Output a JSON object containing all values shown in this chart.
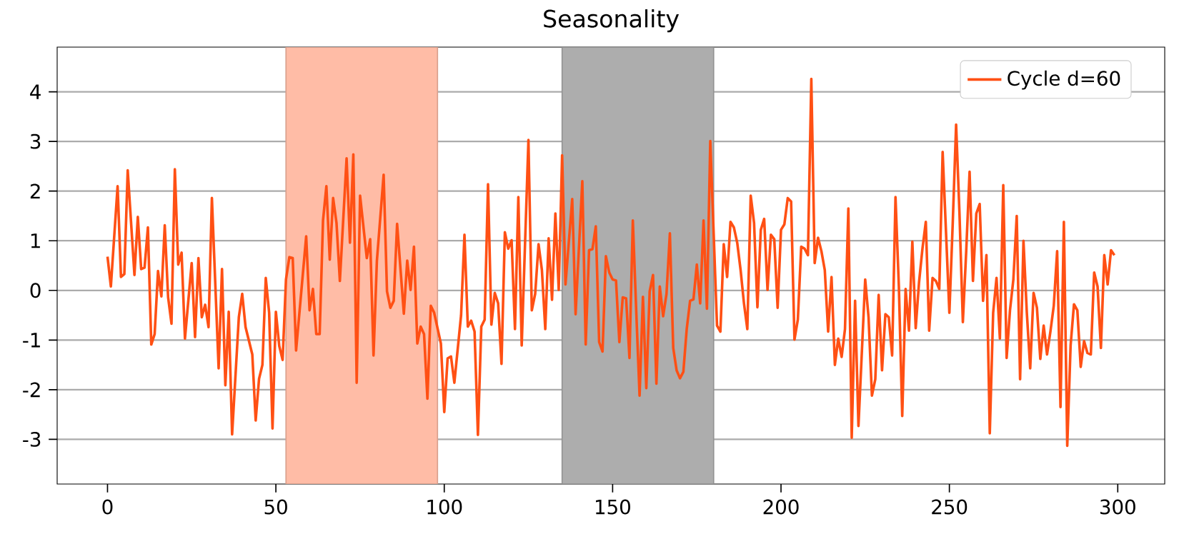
{
  "chart_data": {
    "type": "line",
    "title": "Seasonality",
    "x": [
      0,
      1,
      3,
      4,
      5,
      6,
      8,
      9,
      10,
      11,
      12,
      13,
      14,
      15,
      16,
      17,
      18,
      19,
      20,
      21,
      22,
      23,
      25,
      26,
      27,
      28,
      29,
      30,
      31,
      33,
      34,
      35,
      36,
      37,
      39,
      40,
      41,
      43,
      44,
      45,
      46,
      47,
      48,
      49,
      50,
      51,
      52,
      53,
      54,
      55,
      56,
      59,
      60,
      61,
      62,
      63,
      64,
      65,
      66,
      67,
      68,
      69,
      71,
      72,
      73,
      74,
      75,
      77,
      78,
      79,
      80,
      82,
      83,
      84,
      85,
      86,
      88,
      89,
      90,
      91,
      92,
      93,
      94,
      95,
      96,
      97,
      99,
      100,
      101,
      102,
      103,
      105,
      106,
      107,
      108,
      109,
      110,
      111,
      112,
      113,
      114,
      115,
      116,
      117,
      118,
      119,
      120,
      121,
      122,
      123,
      125,
      126,
      127,
      128,
      129,
      130,
      131,
      132,
      133,
      134,
      135,
      136,
      138,
      139,
      141,
      142,
      143,
      144,
      145,
      146,
      147,
      148,
      149,
      150,
      151,
      152,
      153,
      154,
      155,
      156,
      157,
      158,
      159,
      160,
      161,
      162,
      163,
      164,
      165,
      166,
      167,
      168,
      169,
      170,
      171,
      172,
      173,
      174,
      175,
      176,
      177,
      178,
      179,
      181,
      182,
      183,
      184,
      185,
      186,
      187,
      188,
      189,
      190,
      191,
      192,
      193,
      194,
      195,
      196,
      197,
      198,
      199,
      200,
      201,
      202,
      203,
      204,
      205,
      206,
      207,
      208,
      209,
      210,
      211,
      212,
      213,
      214,
      215,
      216,
      217,
      218,
      219,
      220,
      221,
      222,
      223,
      225,
      226,
      227,
      228,
      229,
      230,
      231,
      232,
      233,
      234,
      235,
      236,
      237,
      238,
      239,
      240,
      241,
      242,
      243,
      244,
      245,
      246,
      247,
      248,
      249,
      250,
      251,
      252,
      253,
      254,
      255,
      256,
      257,
      258,
      259,
      260,
      261,
      262,
      263,
      264,
      265,
      266,
      267,
      268,
      269,
      270,
      271,
      272,
      273,
      274,
      275,
      276,
      277,
      278,
      279,
      280,
      281,
      282,
      283,
      284,
      285,
      286,
      287,
      288,
      289,
      290,
      291,
      292,
      293,
      294,
      295,
      296,
      297,
      298,
      299
    ],
    "series": [
      {
        "name": "Cycle d=60",
        "color": "#ff5014",
        "values": [
          0.68,
          0.08,
          2.1,
          0.27,
          0.33,
          2.42,
          0.31,
          1.48,
          0.43,
          0.46,
          1.27,
          -1.09,
          -0.88,
          0.39,
          -0.12,
          1.31,
          -0.14,
          -0.67,
          2.44,
          0.52,
          0.76,
          -0.97,
          0.55,
          -0.94,
          0.65,
          -0.54,
          -0.29,
          -0.74,
          1.86,
          -1.57,
          0.43,
          -1.91,
          -0.43,
          -2.9,
          -0.54,
          -0.07,
          -0.74,
          -1.29,
          -2.62,
          -1.78,
          -1.5,
          0.25,
          -0.45,
          -2.78,
          -0.43,
          -1.12,
          -1.4,
          0.22,
          0.67,
          0.65,
          -1.21,
          1.09,
          -0.4,
          0.03,
          -0.88,
          -0.88,
          1.41,
          2.1,
          0.62,
          1.86,
          1.36,
          0.19,
          2.66,
          0.96,
          2.74,
          -1.86,
          1.91,
          0.65,
          1.03,
          -1.31,
          0.6,
          2.33,
          -0.02,
          -0.35,
          -0.21,
          1.34,
          -0.47,
          0.6,
          0.01,
          0.88,
          -1.07,
          -0.73,
          -0.88,
          -2.18,
          -0.31,
          -0.45,
          -1.07,
          -2.45,
          -1.37,
          -1.33,
          -1.86,
          -0.5,
          1.12,
          -0.73,
          -0.61,
          -0.83,
          -2.91,
          -0.73,
          -0.59,
          2.14,
          -0.69,
          -0.05,
          -0.26,
          -1.48,
          1.17,
          0.84,
          1.01,
          -0.78,
          1.88,
          -1.11,
          3.03,
          -0.4,
          -0.07,
          0.93,
          0.41,
          -0.78,
          1.05,
          -0.19,
          1.55,
          0.01,
          2.72,
          0.12,
          1.84,
          -0.48,
          2.2,
          -1.09,
          0.81,
          0.83,
          1.29,
          -1.04,
          -1.23,
          0.69,
          0.36,
          0.22,
          0.2,
          -1.04,
          -0.14,
          -0.16,
          -1.36,
          1.41,
          -0.4,
          -2.12,
          -0.13,
          -1.97,
          -0.02,
          0.31,
          -1.88,
          0.08,
          -0.52,
          -0.07,
          1.15,
          -1.16,
          -1.61,
          -1.77,
          -1.64,
          -0.78,
          -0.21,
          -0.18,
          0.52,
          -0.26,
          1.41,
          -0.37,
          3.01,
          -0.71,
          -0.83,
          0.93,
          0.27,
          1.38,
          1.27,
          0.96,
          0.41,
          -0.26,
          -0.78,
          1.91,
          1.36,
          -0.34,
          1.22,
          1.44,
          0.01,
          1.12,
          1.03,
          -0.35,
          1.22,
          1.33,
          1.86,
          1.79,
          -0.99,
          -0.59,
          0.88,
          0.84,
          0.71,
          4.26,
          0.55,
          1.06,
          0.79,
          0.41,
          -0.83,
          0.27,
          -1.5,
          -0.97,
          -1.34,
          -0.78,
          1.65,
          -2.97,
          -0.21,
          -2.73,
          0.22,
          -0.54,
          -2.12,
          -1.79,
          -0.09,
          -1.61,
          -0.48,
          -0.54,
          -1.31,
          1.88,
          0.08,
          -2.53,
          0.03,
          -0.81,
          0.98,
          -0.76,
          0.17,
          0.84,
          1.38,
          -0.81,
          0.25,
          0.19,
          0.03,
          2.79,
          1.17,
          -0.45,
          1.36,
          3.34,
          1.55,
          -0.64,
          0.79,
          2.39,
          0.19,
          1.55,
          1.74,
          -0.21,
          0.71,
          -2.88,
          -0.45,
          0.25,
          -0.97,
          2.12,
          -1.36,
          -0.4,
          0.22,
          1.5,
          -1.79,
          1.0,
          -0.45,
          -1.57,
          -0.05,
          -0.35,
          -1.38,
          -0.71,
          -1.29,
          -0.83,
          -0.31,
          0.79,
          -2.35,
          1.38,
          -3.13,
          -1.11,
          -0.28,
          -0.4,
          -1.54,
          -1.02,
          -1.26,
          -1.29,
          0.36,
          0.08,
          -1.16,
          0.71,
          0.12,
          0.81,
          0.71
        ]
      }
    ],
    "xlim": [
      -14.95,
      313.95
    ],
    "ylim": [
      -3.9,
      4.9
    ],
    "xticks": [
      0,
      50,
      100,
      150,
      200,
      250,
      300
    ],
    "yticks": [
      -3,
      -2,
      -1,
      0,
      1,
      2,
      3,
      4
    ],
    "bands": [
      {
        "axis": "x",
        "from": 53,
        "to": 98,
        "color": "#ffbca6"
      },
      {
        "axis": "x",
        "from": 135,
        "to": 180,
        "color": "#adadad"
      }
    ],
    "grid": "y",
    "legend": "top right",
    "line_style": "solid",
    "marker": "none"
  }
}
